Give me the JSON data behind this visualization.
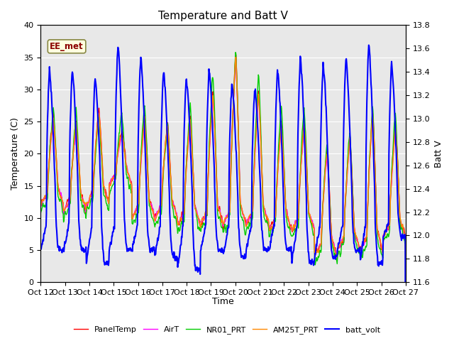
{
  "title": "Temperature and Batt V",
  "xlabel": "Time",
  "ylabel_left": "Temperature (C)",
  "ylabel_right": "Batt V",
  "annotation": "EE_met",
  "xlim": [
    0,
    375
  ],
  "ylim_left": [
    0,
    40
  ],
  "ylim_right": [
    11.6,
    13.8
  ],
  "xtick_labels": [
    "Oct 12",
    "Oct 13",
    "Oct 14",
    "Oct 15",
    "Oct 16",
    "Oct 17",
    "Oct 18",
    "Oct 19",
    "Oct 20",
    "Oct 21",
    "Oct 22",
    "Oct 23",
    "Oct 24",
    "Oct 25",
    "Oct 26",
    "Oct 27"
  ],
  "xtick_positions": [
    0,
    25,
    50,
    75,
    100,
    125,
    150,
    175,
    200,
    225,
    250,
    275,
    300,
    325,
    350,
    375
  ],
  "yticks_left": [
    0,
    5,
    10,
    15,
    20,
    25,
    30,
    35,
    40
  ],
  "yticks_right": [
    11.6,
    11.8,
    12.0,
    12.2,
    12.4,
    12.6,
    12.8,
    13.0,
    13.2,
    13.4,
    13.6,
    13.8
  ],
  "legend_entries": [
    "PanelTemp",
    "AirT",
    "NR01_PRT",
    "AM25T_PRT",
    "batt_volt"
  ],
  "legend_colors": [
    "#ff0000",
    "#ff00ff",
    "#00cc00",
    "#ff8800",
    "#0000ff"
  ],
  "line_widths": [
    1.0,
    1.0,
    1.0,
    1.0,
    1.5
  ],
  "background_color": "#ffffff",
  "plot_bg_color": "#e8e8e8",
  "grid_color": "#ffffff",
  "title_fontsize": 11,
  "axis_fontsize": 9,
  "tick_fontsize": 8,
  "batt_peaks": [
    33,
    33,
    32,
    37,
    35,
    33,
    32,
    33,
    31,
    30,
    33,
    35,
    34,
    35,
    37,
    34,
    34
  ],
  "batt_troughs": [
    5,
    5,
    3,
    5,
    5,
    4,
    2,
    5,
    4,
    5,
    5,
    3,
    4,
    5,
    3,
    7
  ],
  "temp_peaks": [
    26,
    25,
    27,
    24,
    26,
    25,
    26,
    30,
    36,
    30,
    25,
    25,
    21,
    23,
    27,
    25
  ],
  "temp_troughs": [
    12,
    11,
    12,
    15,
    10,
    10,
    9,
    9,
    9,
    9,
    8,
    8,
    4,
    5,
    5,
    7
  ]
}
